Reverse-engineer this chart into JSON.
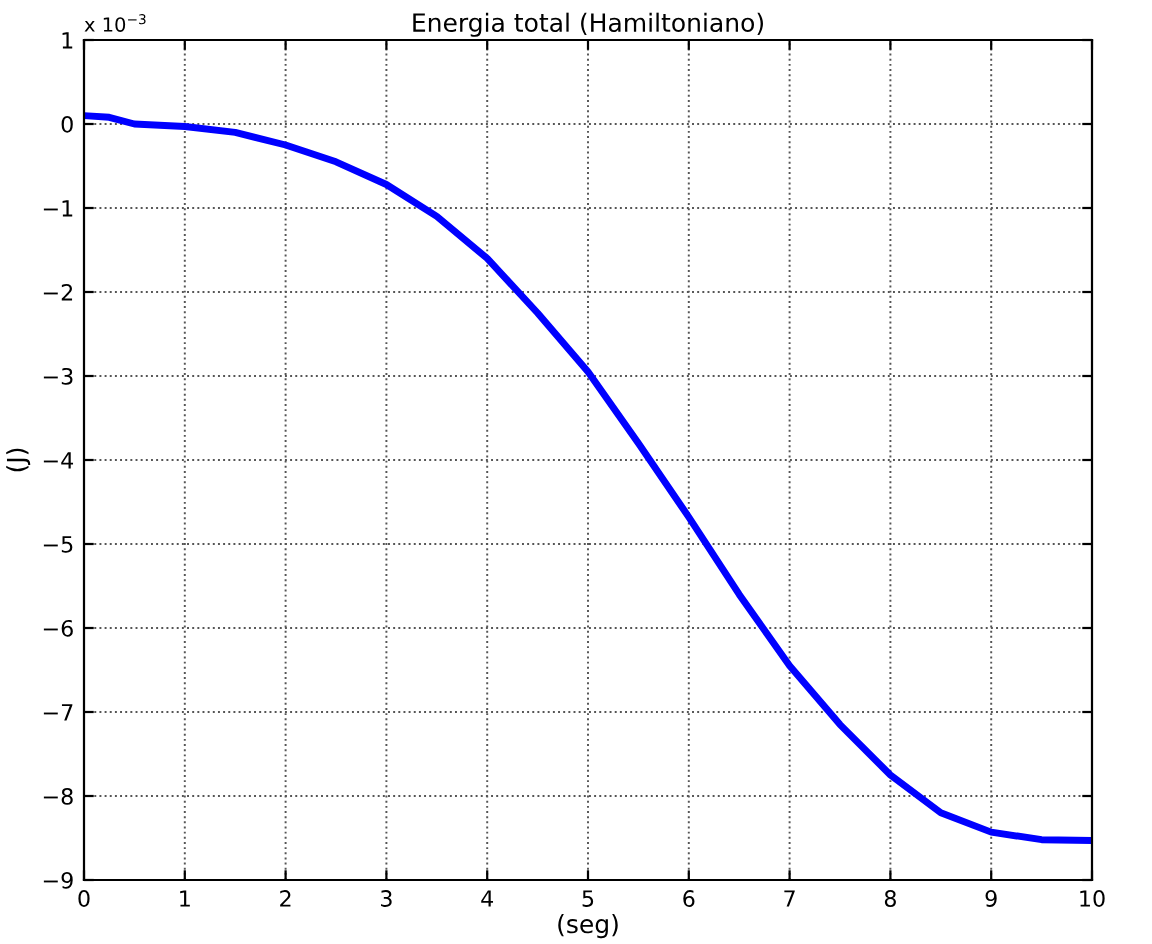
{
  "chart_data": {
    "type": "line",
    "title": "Energia total (Hamiltoniano)",
    "xlabel": "(seg)",
    "ylabel": "(J)",
    "annotations": [
      "x 10$^{−3}$"
    ],
    "x": [
      0,
      0.25,
      0.5,
      1,
      1.5,
      2,
      2.5,
      3,
      3.5,
      4,
      4.5,
      5,
      5.5,
      6,
      6.5,
      7,
      7.5,
      8,
      8.5,
      9,
      9.5,
      10
    ],
    "series": [
      {
        "color": "#0000ff",
        "values": [
          0.1,
          0.08,
          0.0,
          -0.03,
          -0.1,
          -0.25,
          -0.45,
          -0.72,
          -1.1,
          -1.6,
          -2.25,
          -2.95,
          -3.8,
          -4.68,
          -5.6,
          -6.45,
          -7.15,
          -7.75,
          -8.2,
          -8.43,
          -8.52,
          -8.53
        ]
      }
    ],
    "xlim": [
      0,
      10
    ],
    "ylim": [
      -9,
      1
    ],
    "xticks": [
      0,
      1,
      2,
      3,
      4,
      5,
      6,
      7,
      8,
      9,
      10
    ],
    "yticks": [
      {
        "value": -9,
        "label": "−9"
      },
      {
        "value": -8,
        "label": "−8"
      },
      {
        "value": -7,
        "label": "−7"
      },
      {
        "value": -6,
        "label": "−6"
      },
      {
        "value": -5,
        "label": "−5"
      },
      {
        "value": -4,
        "label": "−4"
      },
      {
        "value": -3,
        "label": "−3"
      },
      {
        "value": -2,
        "label": "−2"
      },
      {
        "value": -1,
        "label": "−1"
      },
      0,
      1
    ],
    "grid": true,
    "line_style": "solid",
    "marker": "none",
    "legend": false
  }
}
